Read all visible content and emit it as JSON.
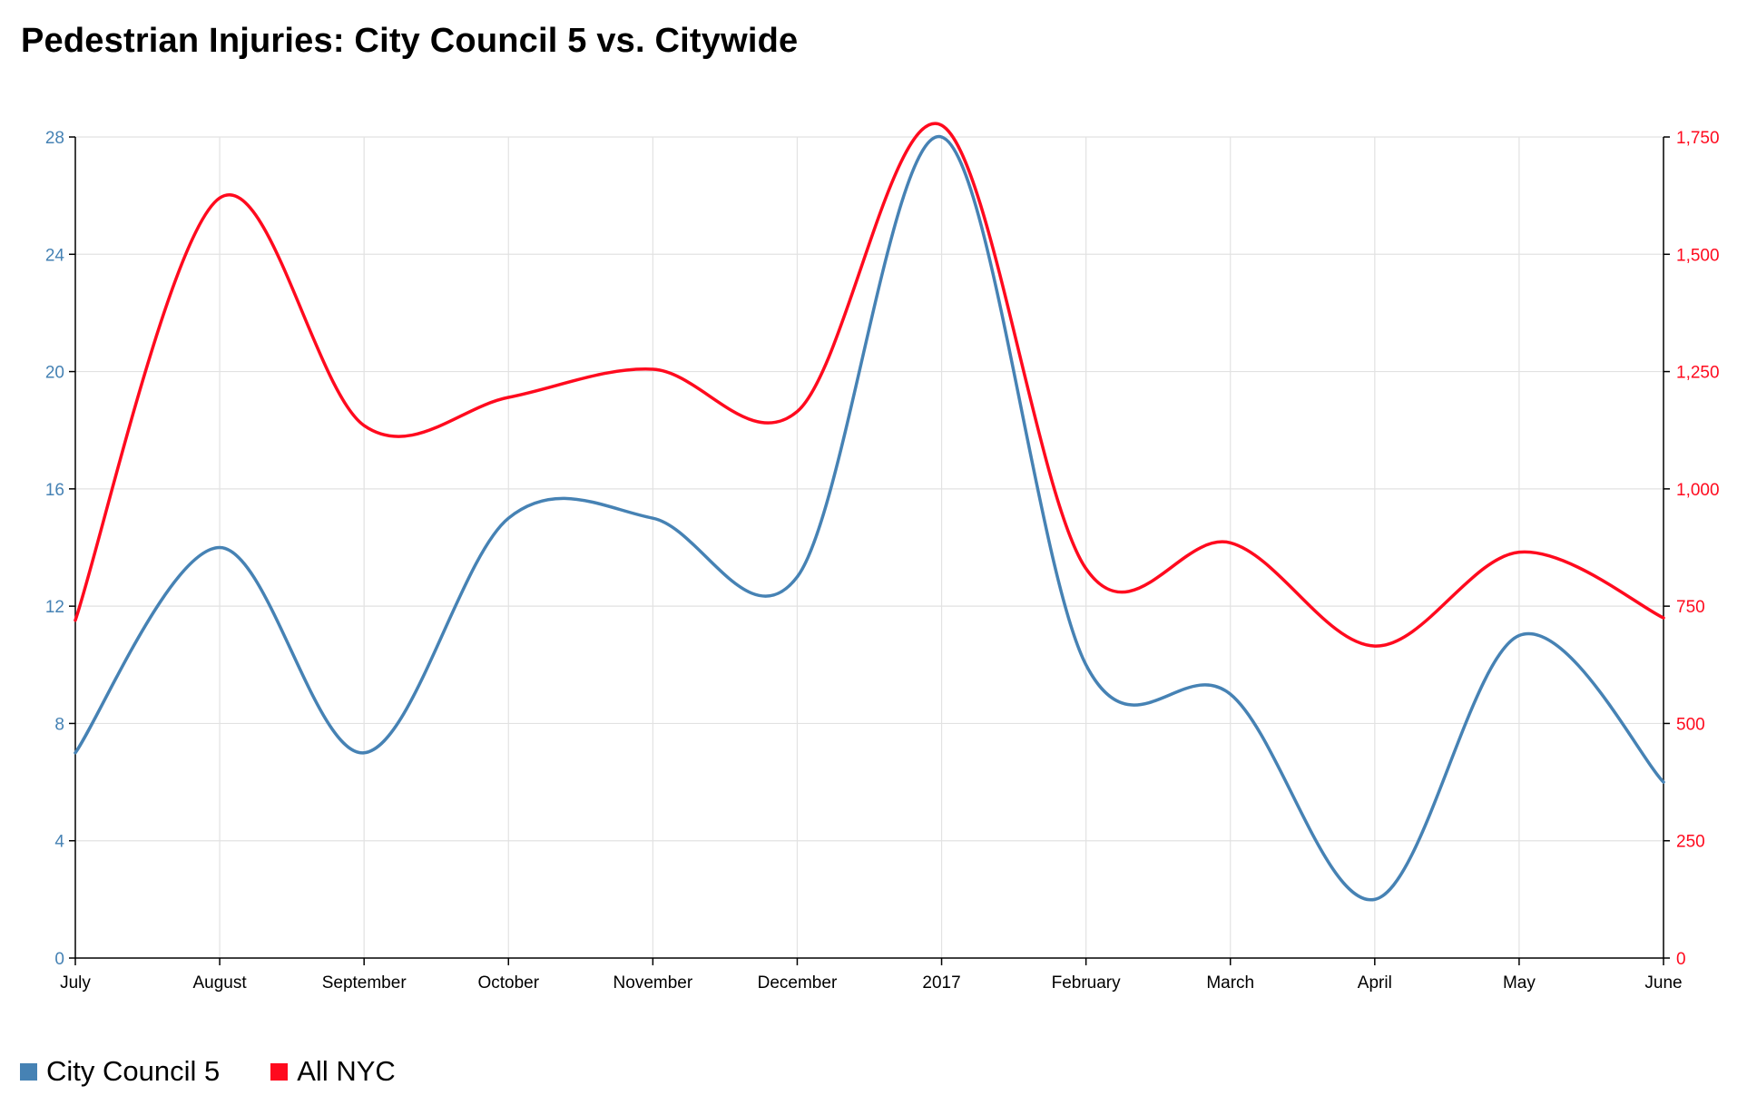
{
  "colors": {
    "council": "#4682b4",
    "citywide": "#ff0a1e",
    "grid": "#e2e2e2",
    "axis": "#000000"
  },
  "chart_data": {
    "type": "line",
    "title": "Pedestrian Injuries: City Council 5 vs. Citywide",
    "categories": [
      "July",
      "August",
      "September",
      "October",
      "November",
      "December",
      "2017",
      "February",
      "March",
      "April",
      "May",
      "June"
    ],
    "series": [
      {
        "name": "City Council 5",
        "axis": "left",
        "color": "#4682b4",
        "values": [
          7,
          14,
          7,
          15,
          15,
          13,
          28,
          10,
          9,
          2,
          11,
          6
        ]
      },
      {
        "name": "All NYC",
        "axis": "right",
        "color": "#ff0a1e",
        "values": [
          720,
          1620,
          1135,
          1195,
          1255,
          1165,
          1775,
          830,
          885,
          665,
          865,
          725
        ]
      }
    ],
    "y_left": {
      "ticks": [
        "0",
        "4",
        "8",
        "12",
        "16",
        "20",
        "24",
        "28"
      ],
      "range": [
        0,
        28
      ],
      "color": "#4682b4"
    },
    "y_right": {
      "ticks": [
        "0",
        "250",
        "500",
        "750",
        "1,000",
        "1,250",
        "1,500",
        "1,750"
      ],
      "range": [
        0,
        1750
      ],
      "color": "#ff0a1e"
    },
    "grid": true,
    "legend_position": "bottom-left"
  }
}
